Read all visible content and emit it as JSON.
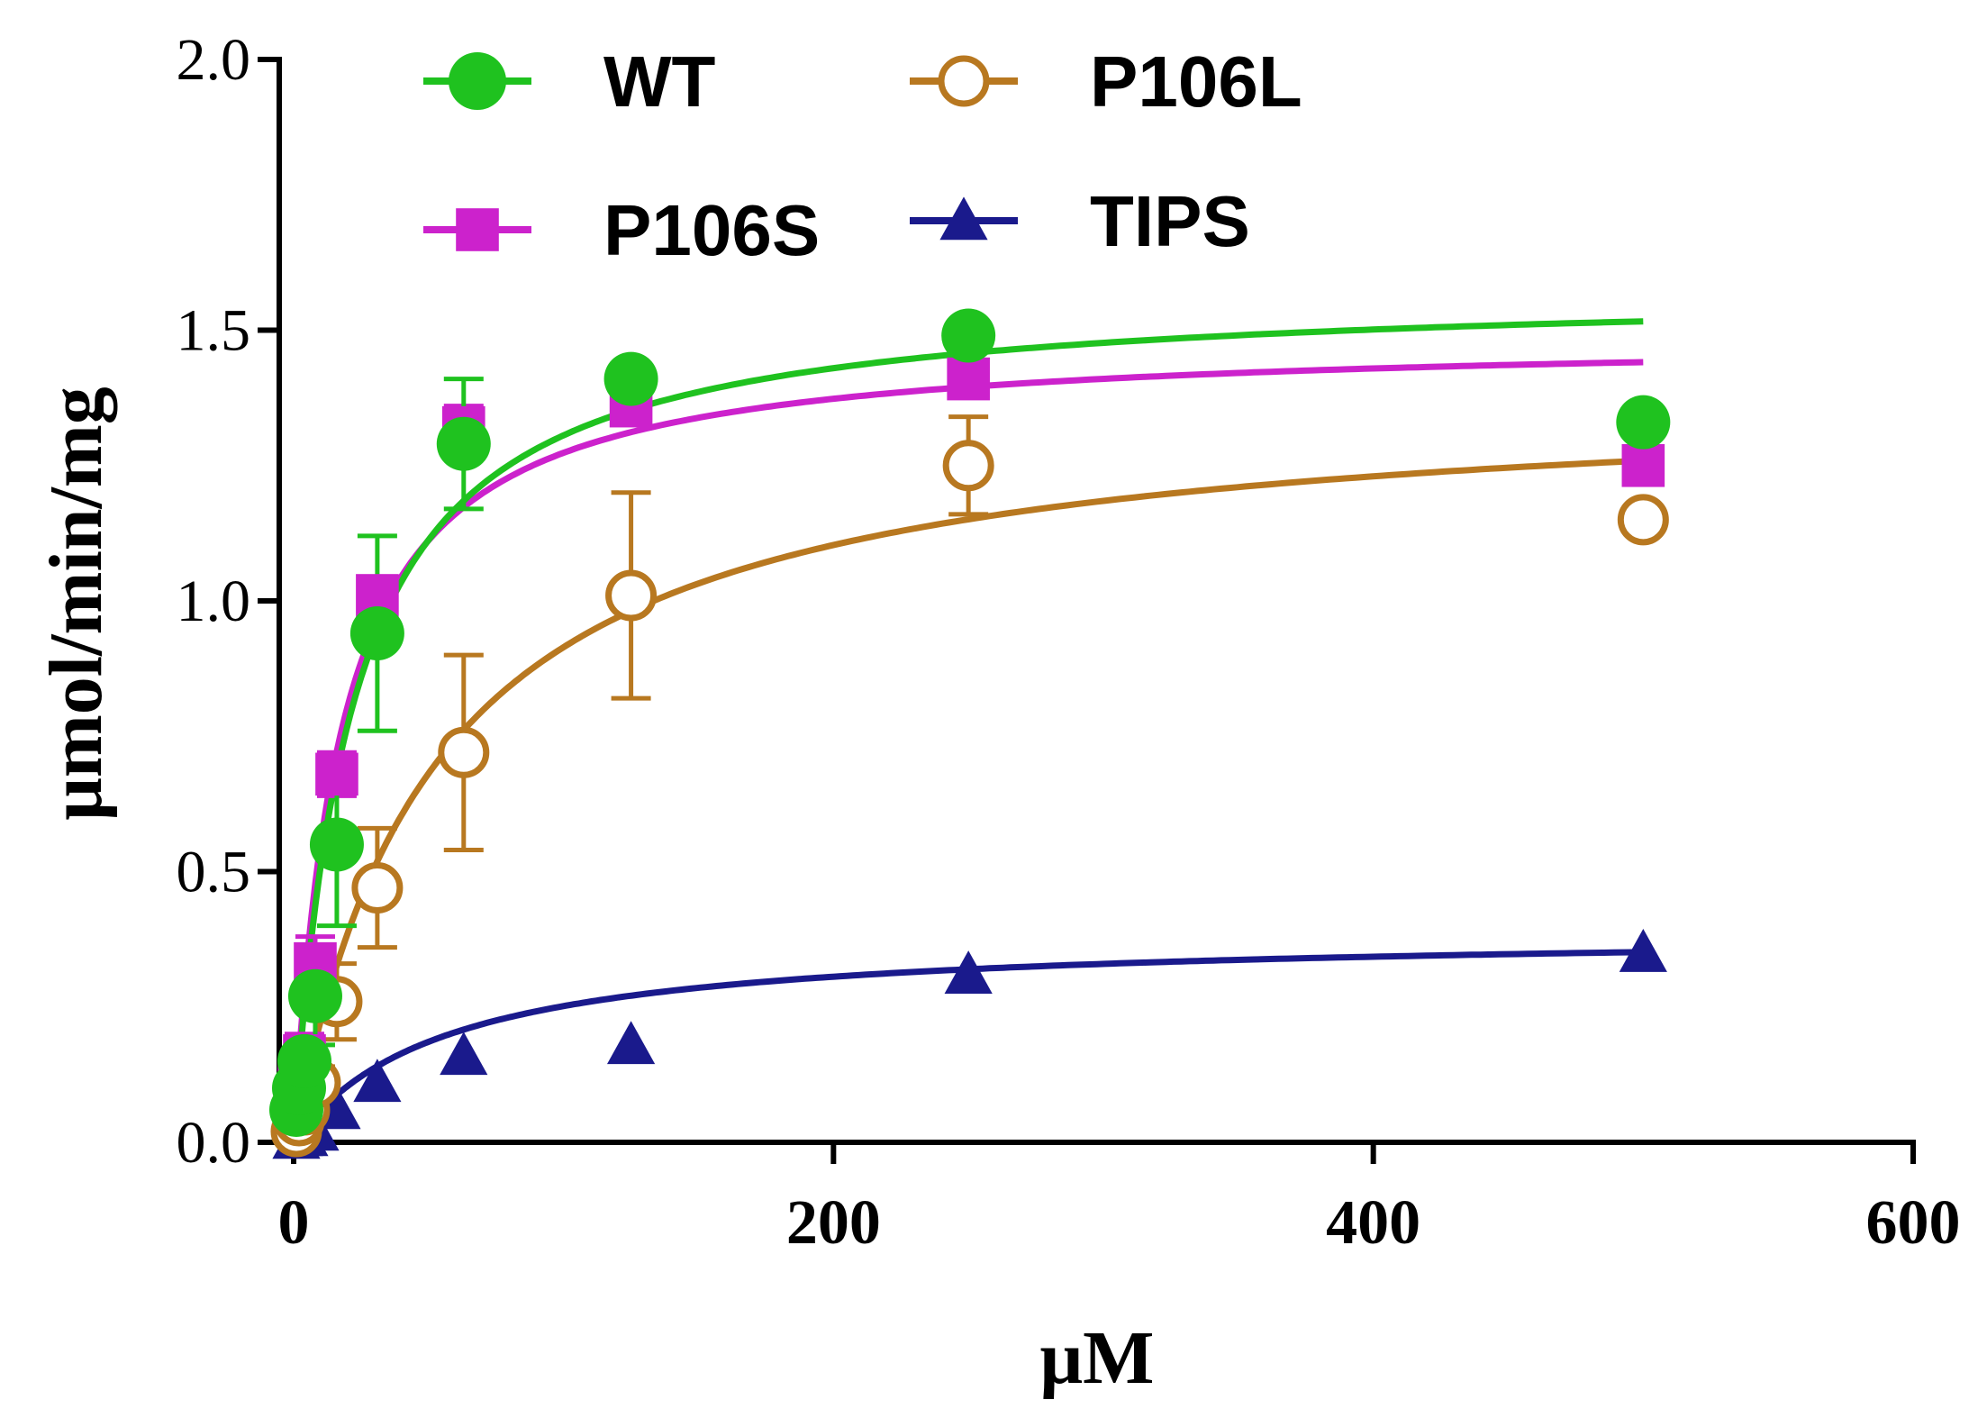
{
  "chart_data": {
    "type": "scatter",
    "xlabel": "μM",
    "ylabel": "μmol/min/mg",
    "xlim": [
      0,
      600
    ],
    "ylim": [
      0,
      2.0
    ],
    "x_ticks": [
      "0",
      "200",
      "400",
      "600"
    ],
    "y_ticks": [
      "0.0",
      "0.5",
      "1.0",
      "1.5",
      "2.0"
    ],
    "grid": false,
    "legend_position": "top-left",
    "series": [
      {
        "name": "WT",
        "color": "#1fc21f",
        "marker": "filled-circle",
        "x": [
          1,
          2,
          4,
          8,
          16,
          31,
          63,
          125,
          250,
          500
        ],
        "y": [
          0.06,
          0.1,
          0.15,
          0.27,
          0.55,
          0.94,
          1.29,
          1.41,
          1.49,
          1.33
        ],
        "err": [
          0.02,
          0.03,
          0.04,
          0.09,
          0.15,
          0.18,
          0.12,
          0.0,
          0.0,
          0.0
        ],
        "fit": {
          "model": "michaelis-menten",
          "vmax": 1.58,
          "km": 21
        }
      },
      {
        "name": "P106S",
        "color": "#cc22cc",
        "marker": "filled-square",
        "x": [
          1,
          2,
          4,
          8,
          16,
          31,
          63,
          125,
          250,
          500
        ],
        "y": [
          0.07,
          0.11,
          0.16,
          0.33,
          0.68,
          1.01,
          1.32,
          1.36,
          1.41,
          1.25
        ],
        "err": [
          0.02,
          0.03,
          0.04,
          0.05,
          0.04,
          0.0,
          0.04,
          0.0,
          0.0,
          0.0
        ],
        "fit": {
          "model": "michaelis-menten",
          "vmax": 1.49,
          "km": 17
        }
      },
      {
        "name": "P106L",
        "color": "#b87820",
        "marker": "open-circle",
        "x": [
          1,
          2,
          4,
          8,
          16,
          31,
          63,
          125,
          250,
          500
        ],
        "y": [
          0.02,
          0.04,
          0.06,
          0.11,
          0.26,
          0.47,
          0.72,
          1.01,
          1.25,
          1.15
        ],
        "err": [
          0.01,
          0.01,
          0.02,
          0.03,
          0.07,
          0.11,
          0.18,
          0.19,
          0.09,
          0.0
        ],
        "fit": {
          "model": "michaelis-menten",
          "vmax": 1.39,
          "km": 52
        }
      },
      {
        "name": "TIPS",
        "color": "#1a1a8c",
        "marker": "filled-triangle",
        "x": [
          1,
          2,
          4,
          8,
          16,
          31,
          63,
          125,
          250,
          500
        ],
        "y": [
          0.005,
          0.01,
          0.01,
          0.02,
          0.06,
          0.11,
          0.16,
          0.18,
          0.31,
          0.35
        ],
        "err": [
          0,
          0,
          0,
          0,
          0,
          0,
          0,
          0,
          0,
          0
        ],
        "fit": {
          "model": "michaelis-menten",
          "vmax": 0.39,
          "km": 55
        }
      }
    ]
  }
}
